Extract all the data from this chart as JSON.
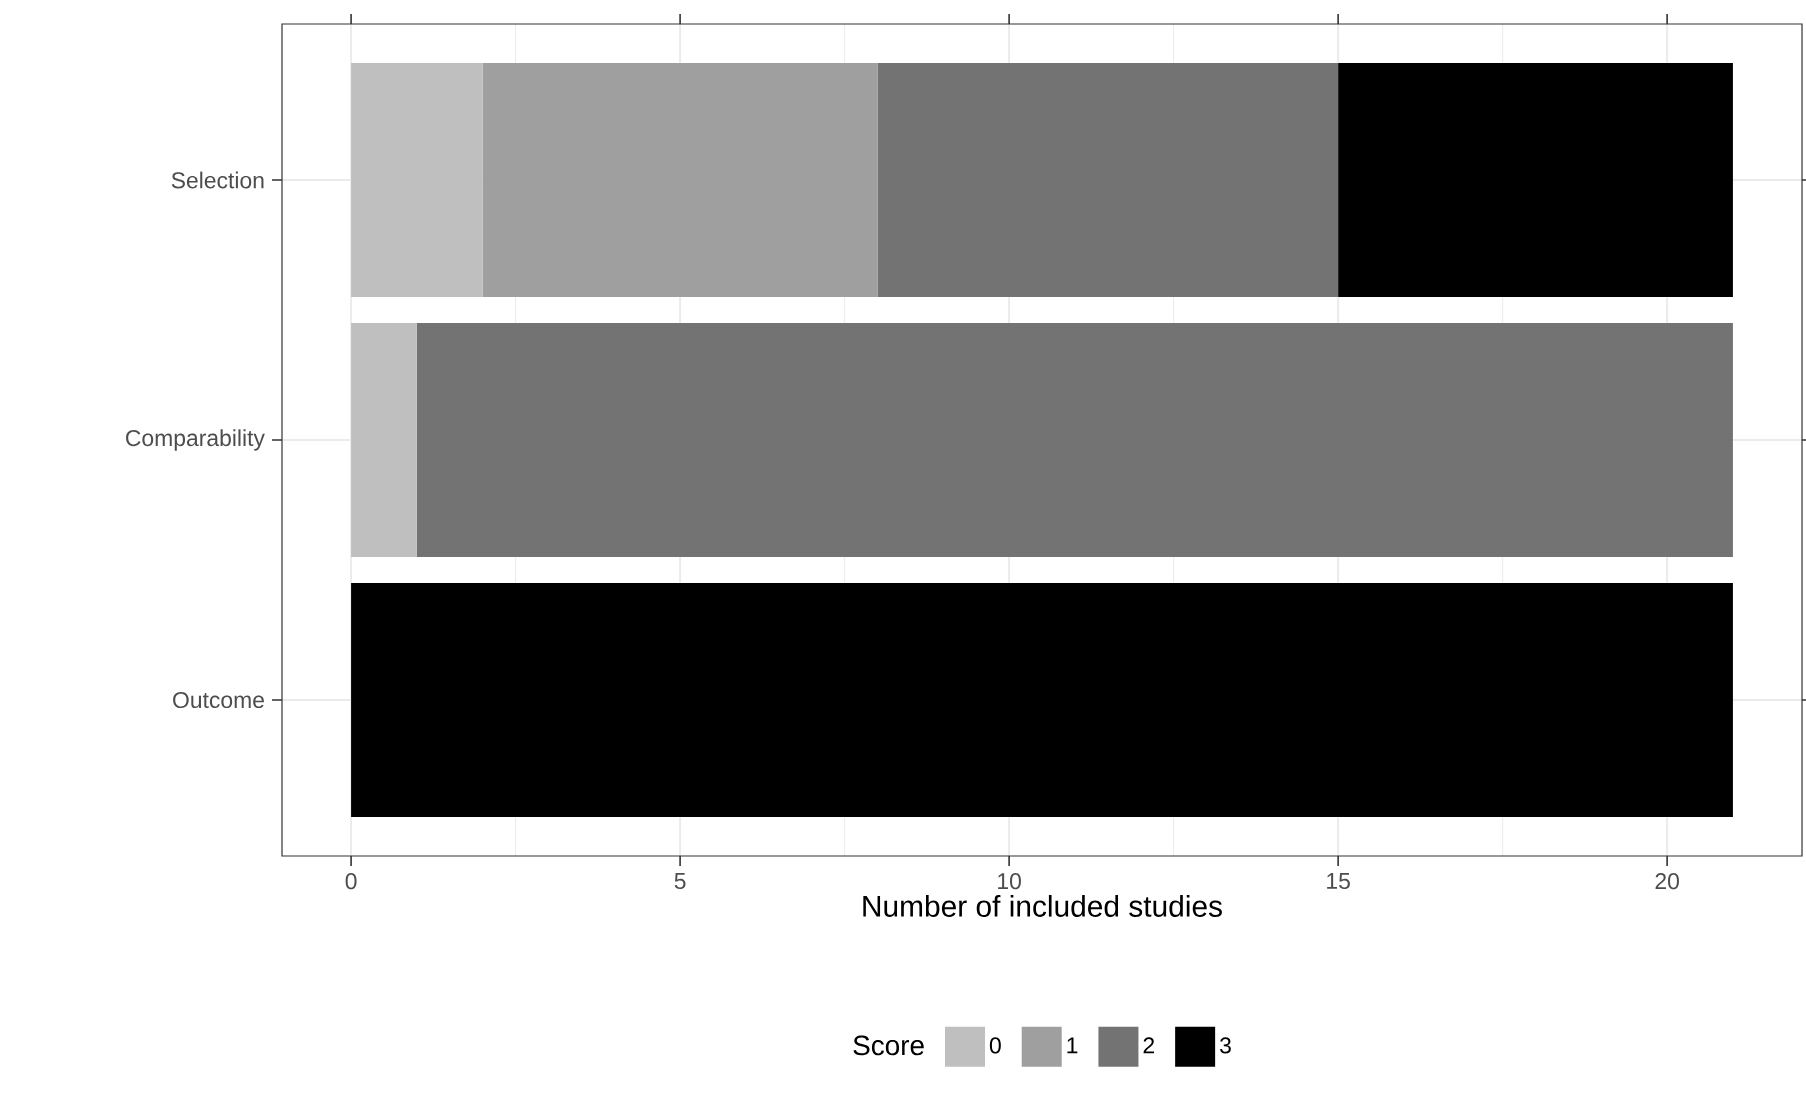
{
  "chart_data": {
    "type": "bar",
    "orientation": "horizontal",
    "stacked": true,
    "categories": [
      "Selection",
      "Comparability",
      "Outcome"
    ],
    "series": [
      {
        "name": "0",
        "color": "#bfbfbf",
        "values": [
          2,
          1,
          0
        ]
      },
      {
        "name": "1",
        "color": "#9f9f9f",
        "values": [
          6,
          0,
          0
        ]
      },
      {
        "name": "2",
        "color": "#737373",
        "values": [
          7,
          20,
          0
        ]
      },
      {
        "name": "3",
        "color": "#000000",
        "values": [
          6,
          0,
          21
        ]
      }
    ],
    "xlabel": "Number of included studies",
    "legend_title": "Score",
    "xlim": [
      -1.05,
      22.05
    ],
    "xticks": [
      0,
      5,
      10,
      15,
      20
    ],
    "grid": true,
    "legend": "bottom"
  }
}
